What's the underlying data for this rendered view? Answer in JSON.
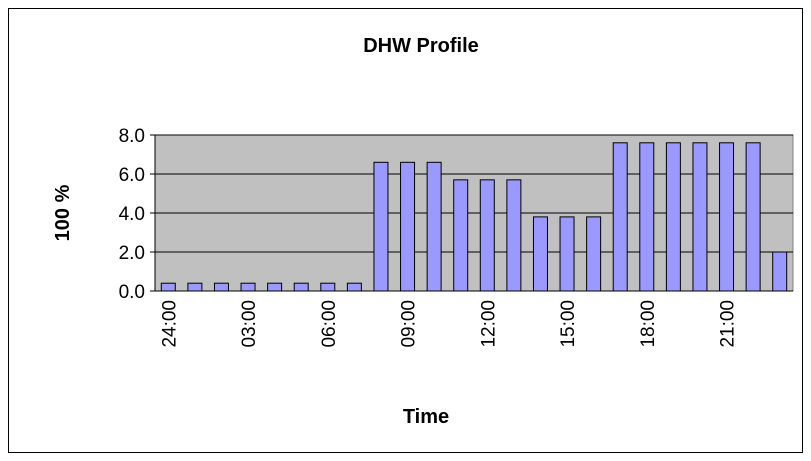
{
  "chart_data": {
    "type": "bar",
    "title": "DHW Profile",
    "x_label": "Time",
    "y_label": "100 %",
    "categories": [
      "24:00",
      null,
      null,
      "03:00",
      null,
      null,
      "06:00",
      null,
      null,
      "09:00",
      null,
      null,
      "12:00",
      null,
      null,
      "15:00",
      null,
      null,
      "18:00",
      null,
      null,
      "21:00",
      null,
      null
    ],
    "values": [
      0.4,
      0.4,
      0.4,
      0.4,
      0.4,
      0.4,
      0.4,
      0.4,
      6.6,
      6.6,
      6.6,
      5.7,
      5.7,
      5.7,
      3.8,
      3.8,
      3.8,
      7.6,
      7.6,
      7.6,
      7.6,
      7.6,
      7.6,
      2.0
    ],
    "color": "#9999ff",
    "ylim": [
      0,
      8
    ],
    "yticks": [
      {
        "value": 0,
        "label": "0.0"
      },
      {
        "value": 2,
        "label": "2.0"
      },
      {
        "value": 4,
        "label": "4.0"
      },
      {
        "value": 6,
        "label": "6.0"
      },
      {
        "value": 8,
        "label": "8.0"
      }
    ],
    "grid": true
  }
}
